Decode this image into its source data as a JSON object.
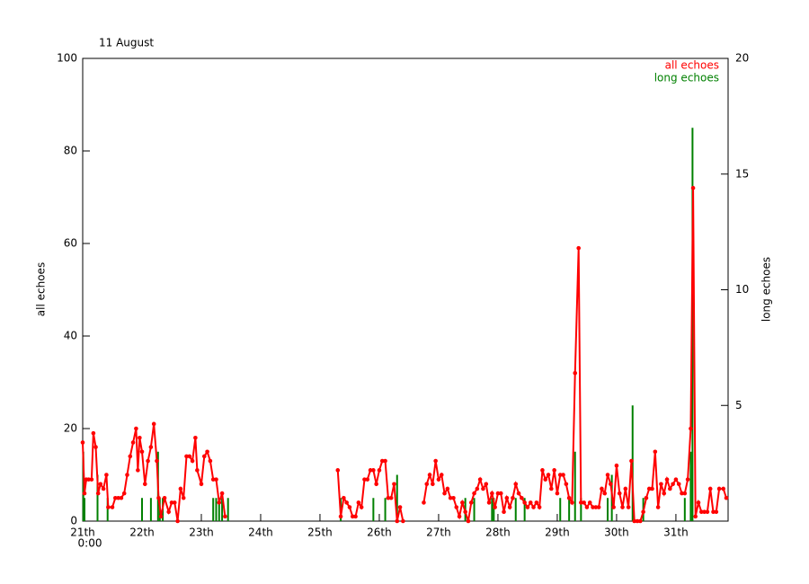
{
  "chart_data": {
    "type": "line",
    "title": "11 August",
    "ylabel": "all echoes",
    "y2label": "long echoes",
    "x_sublabel": "0:00",
    "xlim": [
      21,
      31.88
    ],
    "ylim": [
      0,
      100
    ],
    "y2lim": [
      0,
      20
    ],
    "xticks": [
      {
        "value": 21,
        "label": "21th"
      },
      {
        "value": 22,
        "label": "22th"
      },
      {
        "value": 23,
        "label": "23th"
      },
      {
        "value": 24,
        "label": "24th"
      },
      {
        "value": 25,
        "label": "25th"
      },
      {
        "value": 26,
        "label": "26th"
      },
      {
        "value": 27,
        "label": "27th"
      },
      {
        "value": 28,
        "label": "28th"
      },
      {
        "value": 29,
        "label": "29th"
      },
      {
        "value": 30,
        "label": "30th"
      },
      {
        "value": 31,
        "label": "31th"
      }
    ],
    "yticks": [
      0,
      20,
      40,
      60,
      80,
      100
    ],
    "y2ticks": [
      5,
      10,
      15,
      20
    ],
    "legend": "upper right",
    "series": [
      {
        "name": "all echoes",
        "color": "#ff0000",
        "type": "line",
        "x": [
          21,
          21.03,
          21.06,
          21.1,
          21.15,
          21.18,
          21.22,
          21.26,
          21.3,
          21.35,
          21.4,
          21.43,
          21.5,
          21.55,
          21.6,
          21.65,
          21.7,
          21.75,
          21.8,
          21.85,
          21.9,
          21.93,
          21.96,
          22,
          22.05,
          22.1,
          22.15,
          22.2,
          22.25,
          22.28,
          22.32,
          22.38,
          22.45,
          22.5,
          22.55,
          22.6,
          22.65,
          22.7,
          22.75,
          22.8,
          22.85,
          22.9,
          22.93,
          23,
          23.05,
          23.1,
          23.15,
          23.2,
          23.25,
          23.3,
          23.35,
          23.4,
          23.45,
          25.3,
          25.35,
          25.4,
          25.45,
          25.5,
          25.55,
          25.6,
          25.65,
          25.7,
          25.75,
          25.8,
          25.85,
          25.9,
          25.95,
          26,
          26.05,
          26.1,
          26.15,
          26.2,
          26.25,
          26.3,
          26.35,
          26.4,
          26.55,
          26.75,
          26.8,
          26.85,
          26.9,
          26.95,
          27,
          27.05,
          27.1,
          27.15,
          27.2,
          27.25,
          27.3,
          27.35,
          27.4,
          27.45,
          27.5,
          27.55,
          27.6,
          27.65,
          27.7,
          27.75,
          27.8,
          27.85,
          27.9,
          27.95,
          28,
          28.05,
          28.1,
          28.15,
          28.2,
          28.25,
          28.3,
          28.35,
          28.4,
          28.45,
          28.5,
          28.55,
          28.6,
          28.65,
          28.7,
          28.75,
          28.8,
          28.85,
          28.9,
          28.95,
          29,
          29.05,
          29.1,
          29.15,
          29.2,
          29.25,
          29.3,
          29.36,
          29.4,
          29.45,
          29.5,
          29.55,
          29.6,
          29.65,
          29.7,
          29.75,
          29.8,
          29.85,
          29.9,
          29.95,
          30,
          30.05,
          30.1,
          30.15,
          30.2,
          30.25,
          30.3,
          30.35,
          30.4,
          30.45,
          30.5,
          30.55,
          30.6,
          30.65,
          30.7,
          30.75,
          30.8,
          30.85,
          30.9,
          30.95,
          31,
          31.05,
          31.1,
          31.15,
          31.2,
          31.25,
          31.29,
          31.33,
          31.38,
          31.43,
          31.48,
          31.53,
          31.58,
          31.63,
          31.68,
          31.73,
          31.8,
          31.85
        ],
        "values": [
          17,
          6,
          9,
          9,
          9,
          19,
          16,
          6,
          8,
          7,
          10,
          3,
          3,
          5,
          5,
          5,
          6,
          10,
          14,
          17,
          20,
          11,
          18,
          15,
          8,
          13,
          16,
          21,
          13,
          5,
          1,
          5,
          2,
          4,
          4,
          0,
          7,
          5,
          14,
          14,
          13,
          18,
          11,
          8,
          14,
          15,
          13,
          9,
          9,
          4,
          6,
          1,
          null,
          11,
          1,
          5,
          4,
          3,
          1,
          1,
          4,
          3,
          9,
          9,
          11,
          11,
          8,
          11,
          13,
          13,
          5,
          5,
          8,
          0,
          3,
          0,
          null,
          4,
          8,
          10,
          8,
          13,
          9,
          10,
          6,
          7,
          5,
          5,
          3,
          1,
          4,
          2,
          0,
          4,
          6,
          7,
          9,
          7,
          8,
          4,
          6,
          3,
          6,
          6,
          2,
          5,
          3,
          5,
          8,
          6,
          5,
          4,
          3,
          4,
          3,
          4,
          3,
          11,
          9,
          10,
          7,
          11,
          6,
          10,
          10,
          8,
          5,
          4,
          32,
          59,
          4,
          4,
          3,
          4,
          3,
          3,
          3,
          7,
          6,
          10,
          8,
          3,
          12,
          6,
          3,
          7,
          3,
          13,
          0,
          0,
          0,
          2,
          5,
          7,
          7,
          15,
          3,
          8,
          6,
          9,
          7,
          8,
          9,
          8,
          6,
          6,
          9,
          20,
          72,
          1,
          4,
          2,
          2,
          2,
          7,
          2,
          2,
          7,
          7,
          5
        ]
      },
      {
        "name": "long echoes",
        "color": "#008000",
        "type": "bar",
        "axis": "y2",
        "x": [
          21.01,
          21.03,
          21.25,
          21.42,
          22,
          22.15,
          22.27,
          22.3,
          22.35,
          23.2,
          23.25,
          23.3,
          23.35,
          23.45,
          25.35,
          25.9,
          26.1,
          26.3,
          27.45,
          27.6,
          27.9,
          27.93,
          28.3,
          28.45,
          29.05,
          29.2,
          29.3,
          29.4,
          29.85,
          29.92,
          30.27,
          30.45,
          31.15,
          31.25,
          31.28
        ],
        "values": [
          3,
          1,
          2,
          1,
          1,
          1,
          3,
          1,
          1,
          1,
          1,
          1,
          1,
          1,
          1,
          1,
          1,
          2,
          1,
          1,
          1,
          1,
          1,
          1,
          1,
          1,
          3,
          1,
          1,
          2,
          5,
          1,
          1,
          3,
          17
        ]
      }
    ]
  }
}
